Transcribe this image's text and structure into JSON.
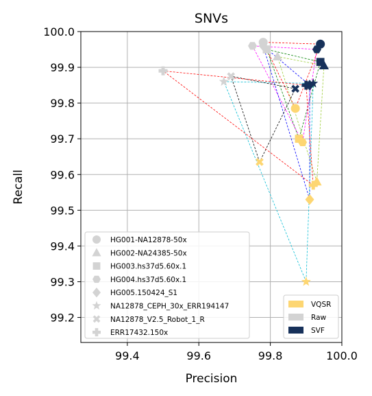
{
  "chart_data": {
    "type": "scatter",
    "title": "SNVs",
    "xlabel": "Precision",
    "ylabel": "Recall",
    "xlim": [
      99.27,
      100.0
    ],
    "ylim": [
      99.13,
      100.0
    ],
    "xticks": [
      "99.4",
      "99.6",
      "99.8",
      "100.0"
    ],
    "xtick_values": [
      99.4,
      99.6,
      99.8,
      100.0
    ],
    "yticks": [
      "99.2",
      "99.3",
      "99.4",
      "99.5",
      "99.6",
      "99.7",
      "99.8",
      "99.9",
      "100.0"
    ],
    "ytick_values": [
      99.2,
      99.3,
      99.4,
      99.5,
      99.6,
      99.7,
      99.8,
      99.9,
      100.0
    ],
    "grid": true,
    "methods": [
      {
        "name": "VQSR",
        "color": "#fdd672"
      },
      {
        "name": "Raw",
        "color": "#d3d3d3"
      },
      {
        "name": "SVF",
        "color": "#17315a"
      }
    ],
    "samples": [
      {
        "name": "HG001-NA12878-50x",
        "marker": "circle",
        "line_color": "#ff0000",
        "points": {
          "VQSR": [
            99.87,
            99.785
          ],
          "Raw": [
            99.78,
            99.97
          ],
          "SVF": [
            99.94,
            99.965
          ]
        }
      },
      {
        "name": "HG002-NA24385-50x",
        "marker": "triangle",
        "line_color": "#9acd32",
        "points": {
          "VQSR": [
            99.93,
            99.58
          ],
          "Raw": [
            99.82,
            99.93
          ],
          "SVF": [
            99.95,
            99.905
          ]
        }
      },
      {
        "name": "HG003.hs37d5.60x.1",
        "marker": "square",
        "line_color": "#008000",
        "points": {
          "VQSR": [
            99.88,
            99.7
          ],
          "Raw": [
            99.79,
            99.95
          ],
          "SVF": [
            99.94,
            99.915
          ]
        }
      },
      {
        "name": "HG004.hs37d5.60x.1",
        "marker": "hexagon",
        "line_color": "#ff00ff",
        "points": {
          "VQSR": [
            99.89,
            99.69
          ],
          "Raw": [
            99.75,
            99.96
          ],
          "SVF": [
            99.93,
            99.95
          ]
        }
      },
      {
        "name": "HG005.150424_S1",
        "marker": "diamond",
        "line_color": "#0000ff",
        "points": {
          "VQSR": [
            99.91,
            99.53
          ],
          "Raw": [
            99.78,
            99.96
          ],
          "SVF": [
            99.91,
            99.85
          ]
        }
      },
      {
        "name": "NA12878_CEPH_30x_ERR194147",
        "marker": "star",
        "line_color": "#00bcd4",
        "points": {
          "VQSR": [
            99.9,
            99.3
          ],
          "Raw": [
            99.67,
            99.86
          ],
          "SVF": [
            99.92,
            99.855
          ]
        }
      },
      {
        "name": "NA12878_V2.5_Robot_1_R",
        "marker": "x",
        "line_color": "#000000",
        "points": {
          "VQSR": [
            99.77,
            99.635
          ],
          "Raw": [
            99.69,
            99.875
          ],
          "SVF": [
            99.87,
            99.84
          ]
        }
      },
      {
        "name": "ERR17432.150x",
        "marker": "plus",
        "line_color": "#ff0000",
        "points": {
          "VQSR": [
            99.92,
            99.57
          ],
          "Raw": [
            99.5,
            99.89
          ],
          "SVF": [
            99.9,
            99.85
          ]
        }
      }
    ],
    "legend_markers_position": "lower-left",
    "legend_methods_position": "lower-right"
  }
}
